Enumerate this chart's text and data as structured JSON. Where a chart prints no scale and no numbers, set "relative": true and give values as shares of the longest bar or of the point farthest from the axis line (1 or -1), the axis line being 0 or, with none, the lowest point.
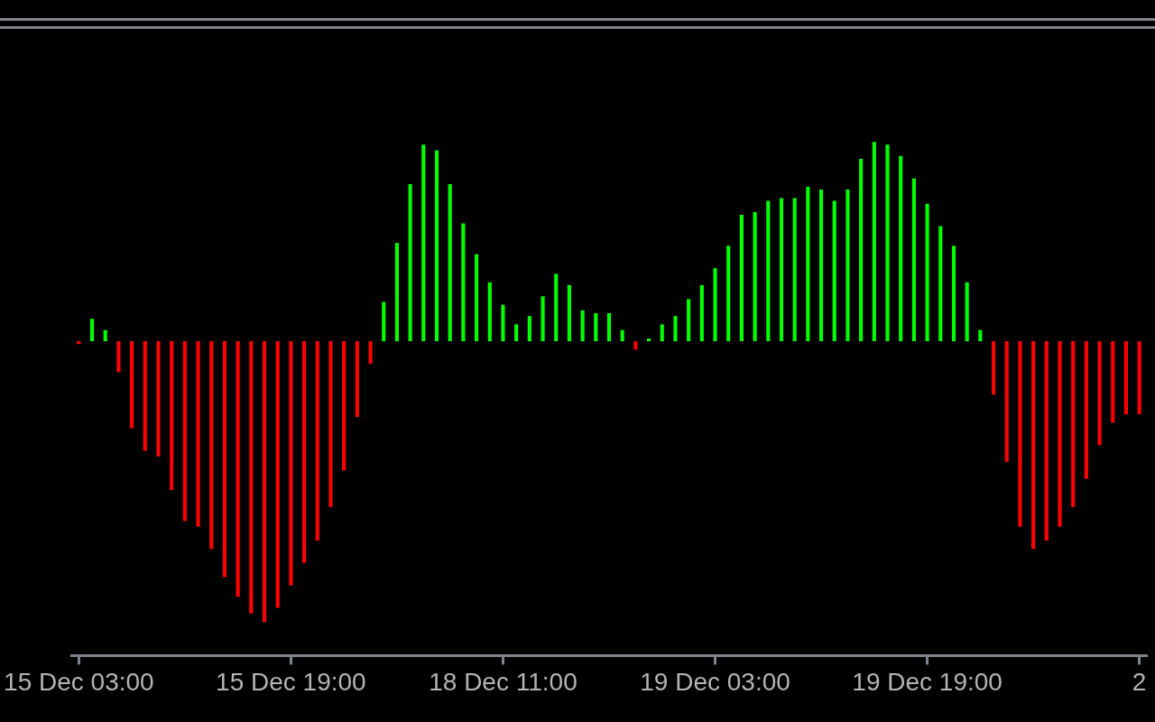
{
  "chart_data": {
    "type": "bar",
    "relative": true,
    "categories": [
      "15 Dec 03:00",
      null,
      null,
      null,
      null,
      null,
      null,
      null,
      null,
      null,
      null,
      null,
      null,
      null,
      null,
      null,
      "15 Dec 19:00",
      null,
      null,
      null,
      null,
      null,
      null,
      null,
      null,
      null,
      null,
      null,
      null,
      null,
      null,
      null,
      "18 Dec 11:00",
      null,
      null,
      null,
      null,
      null,
      null,
      null,
      null,
      null,
      null,
      null,
      null,
      null,
      null,
      null,
      "19 Dec 03:00",
      null,
      null,
      null,
      null,
      null,
      null,
      null,
      null,
      null,
      null,
      null,
      null,
      null,
      null,
      null,
      "19 Dec 19:00",
      null,
      null,
      null,
      null,
      null,
      null,
      null,
      null,
      null,
      null,
      null,
      null,
      null,
      null,
      null,
      "2"
    ],
    "values": [
      -0.01,
      0.08,
      0.04,
      -0.11,
      -0.31,
      -0.39,
      -0.41,
      -0.53,
      -0.64,
      -0.66,
      -0.74,
      -0.84,
      -0.91,
      -0.97,
      -1,
      -0.95,
      -0.87,
      -0.79,
      -0.71,
      -0.59,
      -0.46,
      -0.27,
      -0.08,
      0.14,
      0.35,
      0.56,
      0.7,
      0.68,
      0.56,
      0.42,
      0.31,
      0.21,
      0.13,
      0.06,
      0.09,
      0.16,
      0.24,
      0.2,
      0.11,
      0.1,
      0.1,
      0.04,
      -0.03,
      0.01,
      0.06,
      0.09,
      0.15,
      0.2,
      0.26,
      0.34,
      0.45,
      0.46,
      0.5,
      0.51,
      0.51,
      0.55,
      0.54,
      0.5,
      0.54,
      0.65,
      0.71,
      0.7,
      0.66,
      0.58,
      0.49,
      0.41,
      0.34,
      0.21,
      0.04,
      -0.19,
      -0.43,
      -0.66,
      -0.74,
      -0.71,
      -0.66,
      -0.59,
      -0.49,
      -0.37,
      -0.29,
      -0.26,
      -0.26
    ],
    "colors": [
      "#ff0000",
      "#00ff00",
      "#00ff00",
      "#ff0000",
      "#ff0000",
      "#ff0000",
      "#ff0000",
      "#ff0000",
      "#ff0000",
      "#ff0000",
      "#ff0000",
      "#ff0000",
      "#ff0000",
      "#ff0000",
      "#ff0000",
      "#ff0000",
      "#ff0000",
      "#ff0000",
      "#ff0000",
      "#ff0000",
      "#ff0000",
      "#ff0000",
      "#ff0000",
      "#00ff00",
      "#00ff00",
      "#00ff00",
      "#00ff00",
      "#00ff00",
      "#00ff00",
      "#00ff00",
      "#00ff00",
      "#00ff00",
      "#00ff00",
      "#00ff00",
      "#00ff00",
      "#00ff00",
      "#00ff00",
      "#00ff00",
      "#00ff00",
      "#00ff00",
      "#00ff00",
      "#00ff00",
      "#ff0000",
      "#00ff00",
      "#00ff00",
      "#00ff00",
      "#00ff00",
      "#00ff00",
      "#00ff00",
      "#00ff00",
      "#00ff00",
      "#00ff00",
      "#00ff00",
      "#00ff00",
      "#00ff00",
      "#00ff00",
      "#00ff00",
      "#00ff00",
      "#00ff00",
      "#00ff00",
      "#00ff00",
      "#00ff00",
      "#00ff00",
      "#00ff00",
      "#00ff00",
      "#00ff00",
      "#00ff00",
      "#00ff00",
      "#00ff00",
      "#ff0000",
      "#ff0000",
      "#ff0000",
      "#ff0000",
      "#ff0000",
      "#ff0000",
      "#ff0000",
      "#ff0000",
      "#ff0000",
      "#ff0000",
      "#ff0000",
      "#ff0000"
    ]
  }
}
